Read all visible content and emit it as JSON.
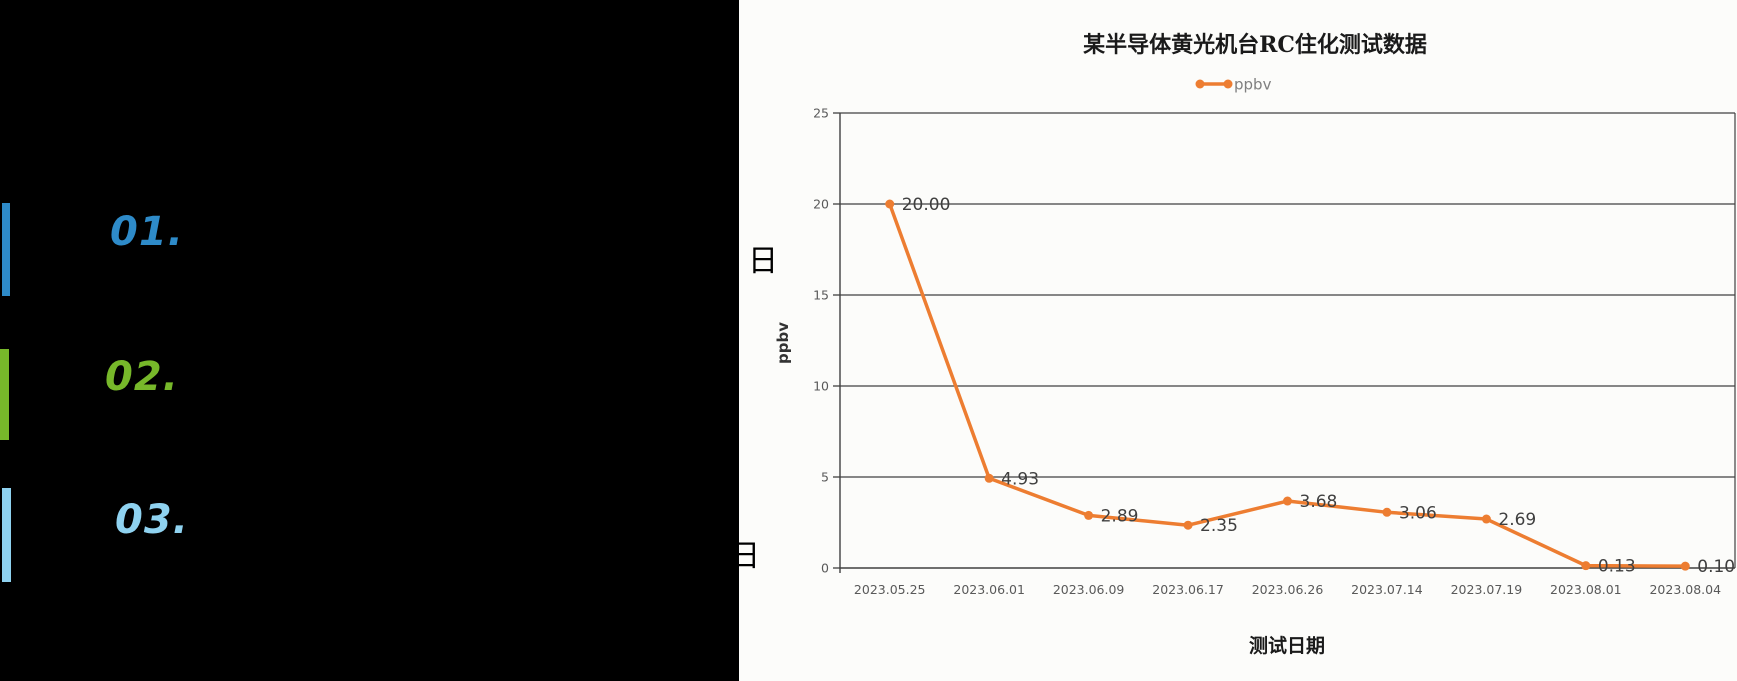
{
  "left_panel": {
    "items": [
      {
        "label": "01.",
        "color": "#2E8BC9"
      },
      {
        "label": "02.",
        "color": "#77B82A"
      },
      {
        "label": "03.",
        "color": "#8FD2F0"
      }
    ]
  },
  "overlay": {
    "glyph1": "日",
    "glyph2": "日"
  },
  "chart_data": {
    "type": "line",
    "title": "某半导体黄光机台RC住化测试数据",
    "xlabel": "测试日期",
    "ylabel": "ppbv",
    "legend_position": "top",
    "grid": true,
    "categories": [
      "2023.05.25",
      "2023.06.01",
      "2023.06.09",
      "2023.06.17",
      "2023.06.26",
      "2023.07.14",
      "2023.07.19",
      "2023.08.01",
      "2023.08.04"
    ],
    "series": [
      {
        "name": "ppbv",
        "color": "#ED7D31",
        "values": [
          20.0,
          4.93,
          2.89,
          2.35,
          3.68,
          3.06,
          2.69,
          0.13,
          0.1
        ],
        "data_labels": [
          "20.00",
          "4.93",
          "2.89",
          "2.35",
          "3.68",
          "3.06",
          "2.69",
          "0.13",
          "0.10"
        ]
      }
    ],
    "ylim": [
      0,
      25
    ],
    "yticks": [
      0,
      5,
      10,
      15,
      20,
      25
    ],
    "colors": {
      "gridline": "#404040",
      "tick_label": "#595959",
      "data_label": "#3f3f3f",
      "legend_text": "#7f7f7f"
    }
  }
}
